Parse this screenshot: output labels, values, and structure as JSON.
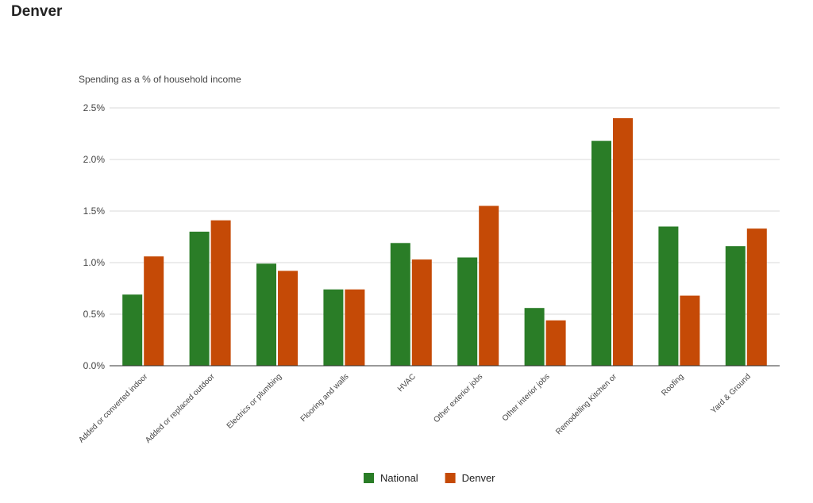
{
  "page": {
    "title": "Denver"
  },
  "chart_data": {
    "type": "bar",
    "title": "",
    "ylabel": "Spending as a % of household income",
    "xlabel": "",
    "categories": [
      "Added or converted indoor",
      "Added or replaced outdoor",
      "Electrics or plumbing",
      "Flooring and walls",
      "HVAC",
      "Other exterior jobs",
      "Other interior jobs",
      "Remodelling Kitchen or",
      "Roofing",
      "Yard & Ground"
    ],
    "series": [
      {
        "name": "National",
        "color": "#2a7d27",
        "values": [
          0.69,
          1.3,
          0.99,
          0.74,
          1.19,
          1.05,
          0.56,
          2.18,
          1.35,
          1.16
        ]
      },
      {
        "name": "Denver",
        "color": "#c54a06",
        "values": [
          1.06,
          1.41,
          0.92,
          0.74,
          1.03,
          1.55,
          0.44,
          2.4,
          0.68,
          1.33
        ]
      }
    ],
    "ylim": [
      0,
      2.5
    ],
    "yticks": [
      "0.0%",
      "0.5%",
      "1.0%",
      "1.5%",
      "2.0%",
      "2.5%"
    ],
    "grid": true,
    "legend_position": "bottom"
  }
}
